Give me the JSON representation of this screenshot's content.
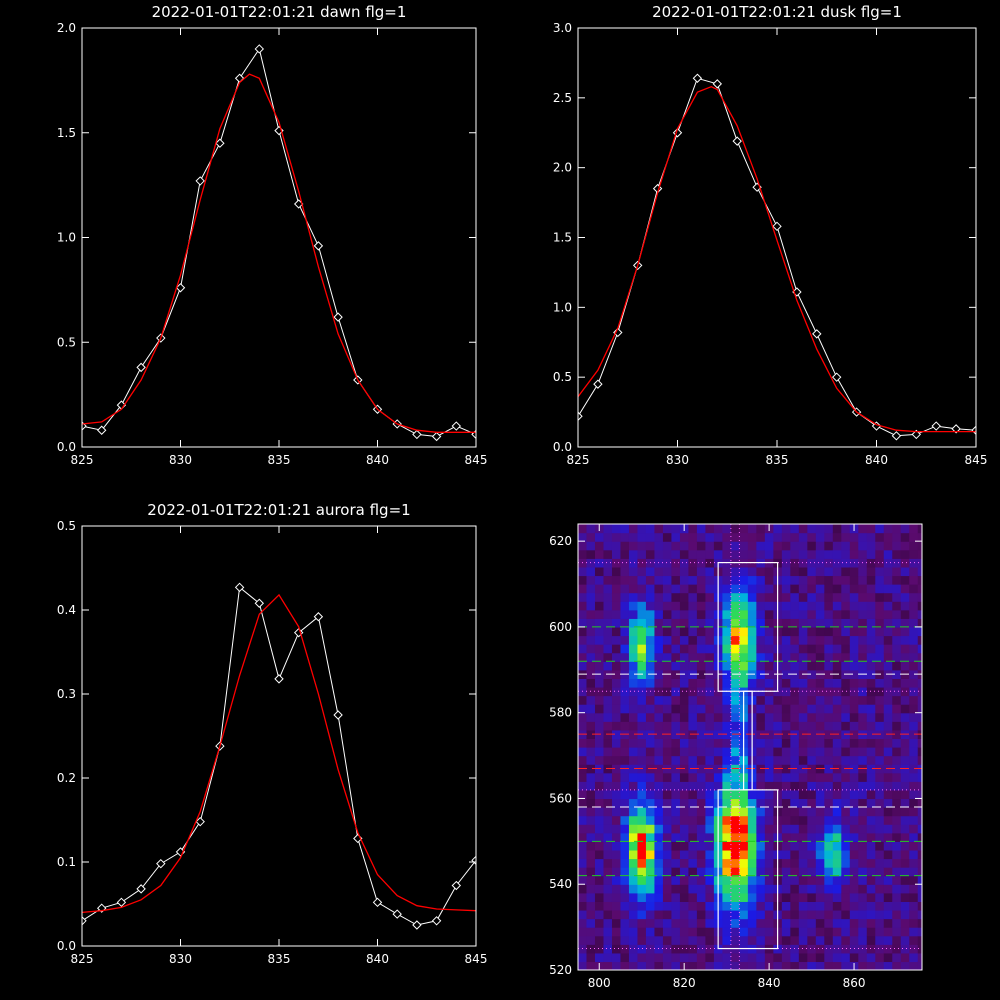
{
  "chart_data": [
    {
      "type": "line",
      "title": "2022-01-01T22:01:21 dawn flg=1",
      "xlim": [
        825,
        845
      ],
      "ylim": [
        0.0,
        2.0
      ],
      "xticks": [
        825,
        830,
        835,
        840,
        845
      ],
      "yticks": [
        0.0,
        0.5,
        1.0,
        1.5,
        2.0
      ],
      "ytick_labels": [
        "0.0",
        "0.5",
        "1.0",
        "1.5",
        "2.0"
      ],
      "series": [
        {
          "color": "#ffffff",
          "marker": "diamond",
          "x": [
            825,
            826,
            827,
            828,
            829,
            830,
            831,
            832,
            833,
            834,
            835,
            836,
            837,
            838,
            839,
            840,
            841,
            842,
            843,
            844,
            845
          ],
          "y": [
            0.1,
            0.08,
            0.2,
            0.38,
            0.52,
            0.76,
            1.27,
            1.45,
            1.76,
            1.9,
            1.51,
            1.16,
            0.96,
            0.62,
            0.32,
            0.18,
            0.11,
            0.06,
            0.05,
            0.1,
            0.06
          ]
        },
        {
          "color": "#ff0000",
          "x": [
            825,
            826,
            827,
            828,
            829,
            830,
            831,
            832,
            833,
            833.5,
            834,
            835,
            836,
            837,
            838,
            839,
            840,
            841,
            842,
            843,
            844,
            845
          ],
          "y": [
            0.11,
            0.12,
            0.18,
            0.32,
            0.52,
            0.82,
            1.18,
            1.52,
            1.74,
            1.78,
            1.76,
            1.55,
            1.22,
            0.86,
            0.54,
            0.32,
            0.18,
            0.11,
            0.08,
            0.07,
            0.07,
            0.07
          ]
        }
      ]
    },
    {
      "type": "line",
      "title": "2022-01-01T22:01:21 dusk flg=1",
      "xlim": [
        825,
        845
      ],
      "ylim": [
        0.0,
        3.0
      ],
      "xticks": [
        825,
        830,
        835,
        840,
        845
      ],
      "yticks": [
        0.0,
        0.5,
        1.0,
        1.5,
        2.0,
        2.5,
        3.0
      ],
      "ytick_labels": [
        "0.0",
        "0.5",
        "1.0",
        "1.5",
        "2.0",
        "2.5",
        "3.0"
      ],
      "series": [
        {
          "color": "#ffffff",
          "marker": "diamond",
          "x": [
            825,
            826,
            827,
            828,
            829,
            830,
            831,
            832,
            833,
            834,
            835,
            836,
            837,
            838,
            839,
            840,
            841,
            842,
            843,
            844,
            845
          ],
          "y": [
            0.22,
            0.45,
            0.82,
            1.3,
            1.85,
            2.25,
            2.64,
            2.6,
            2.19,
            1.86,
            1.58,
            1.11,
            0.81,
            0.5,
            0.25,
            0.15,
            0.08,
            0.09,
            0.15,
            0.13,
            0.12
          ]
        },
        {
          "color": "#ff0000",
          "x": [
            825,
            826,
            827,
            828,
            829,
            830,
            831,
            831.7,
            832,
            833,
            834,
            835,
            836,
            837,
            838,
            839,
            840,
            841,
            842,
            843,
            844,
            845
          ],
          "y": [
            0.36,
            0.55,
            0.85,
            1.3,
            1.82,
            2.28,
            2.54,
            2.58,
            2.56,
            2.3,
            1.92,
            1.48,
            1.05,
            0.7,
            0.42,
            0.25,
            0.16,
            0.12,
            0.11,
            0.11,
            0.11,
            0.11
          ]
        }
      ]
    },
    {
      "type": "line",
      "title": "2022-01-01T22:01:21 aurora flg=1",
      "xlim": [
        825,
        845
      ],
      "ylim": [
        0.0,
        0.5
      ],
      "xticks": [
        825,
        830,
        835,
        840,
        845
      ],
      "yticks": [
        0.0,
        0.1,
        0.2,
        0.3,
        0.4,
        0.5
      ],
      "ytick_labels": [
        "0.0",
        "0.1",
        "0.2",
        "0.3",
        "0.4",
        "0.5"
      ],
      "series": [
        {
          "color": "#ffffff",
          "marker": "diamond",
          "x": [
            825,
            826,
            827,
            828,
            829,
            830,
            831,
            832,
            833,
            834,
            835,
            836,
            837,
            838,
            839,
            840,
            841,
            842,
            843,
            844,
            845
          ],
          "y": [
            0.03,
            0.045,
            0.052,
            0.068,
            0.098,
            0.112,
            0.148,
            0.238,
            0.427,
            0.408,
            0.318,
            0.373,
            0.392,
            0.275,
            0.128,
            0.052,
            0.038,
            0.025,
            0.03,
            0.072,
            0.102
          ]
        },
        {
          "color": "#ff0000",
          "x": [
            825,
            826,
            827,
            828,
            829,
            830,
            831,
            832,
            833,
            834,
            835,
            836,
            837,
            838,
            839,
            840,
            841,
            842,
            843,
            844,
            845
          ],
          "y": [
            0.04,
            0.042,
            0.046,
            0.055,
            0.072,
            0.105,
            0.16,
            0.238,
            0.322,
            0.395,
            0.418,
            0.38,
            0.3,
            0.21,
            0.135,
            0.085,
            0.06,
            0.048,
            0.044,
            0.043,
            0.042
          ]
        }
      ]
    },
    {
      "type": "heatmap",
      "xlim": [
        795,
        876
      ],
      "ylim": [
        520,
        624
      ],
      "xticks": [
        800,
        820,
        840,
        860
      ],
      "yticks": [
        520,
        540,
        560,
        580,
        600,
        620
      ],
      "colormap": [
        "#000000",
        "#5a0a6e",
        "#1a1ae6",
        "#00b4dc",
        "#32dc50",
        "#ffff00",
        "#ff0000"
      ],
      "blobs": [
        {
          "x": 810,
          "y": 548,
          "peak": 0.75,
          "sx": 2.5,
          "sy": 7
        },
        {
          "x": 832,
          "y": 549,
          "peak": 1.0,
          "sx": 3,
          "sy": 9
        },
        {
          "x": 855,
          "y": 548,
          "peak": 0.45,
          "sx": 2,
          "sy": 5
        },
        {
          "x": 810,
          "y": 596,
          "peak": 0.55,
          "sx": 2,
          "sy": 6
        },
        {
          "x": 833,
          "y": 597,
          "peak": 0.7,
          "sx": 2.5,
          "sy": 8
        },
        {
          "x": 833,
          "y": 574,
          "peak": 0.22,
          "sx": 1.5,
          "sy": 10
        }
      ],
      "boxes": [
        {
          "x0": 828,
          "x1": 842,
          "y0": 585,
          "y1": 615
        },
        {
          "x0": 828,
          "x1": 842,
          "y0": 525,
          "y1": 562
        },
        {
          "x0": 834,
          "x1": 836,
          "y0": 562,
          "y1": 585
        }
      ],
      "hlines": [
        {
          "y": 615,
          "color": "#ff66ff",
          "style": "dotted"
        },
        {
          "y": 600,
          "color": "#22cc22",
          "style": "dashed"
        },
        {
          "y": 592,
          "color": "#22cc22",
          "style": "dashed"
        },
        {
          "y": 589,
          "color": "#ffffff",
          "style": "dashed"
        },
        {
          "y": 585,
          "color": "#ff66ff",
          "style": "dotted"
        },
        {
          "y": 575,
          "color": "#ff2222",
          "style": "dashed"
        },
        {
          "y": 567,
          "color": "#ff2222",
          "style": "dashed"
        },
        {
          "y": 562,
          "color": "#ff66ff",
          "style": "dotted"
        },
        {
          "y": 558,
          "color": "#ffffff",
          "style": "dashed"
        },
        {
          "y": 550,
          "color": "#22cc22",
          "style": "dashed"
        },
        {
          "y": 542,
          "color": "#22cc22",
          "style": "dashed"
        },
        {
          "y": 525,
          "color": "#ff66ff",
          "style": "dotted"
        }
      ],
      "vlines": [
        {
          "x": 831,
          "color": "#ff66ff",
          "style": "dotted"
        },
        {
          "x": 833,
          "color": "#ff66ff",
          "style": "dotted"
        }
      ]
    }
  ]
}
